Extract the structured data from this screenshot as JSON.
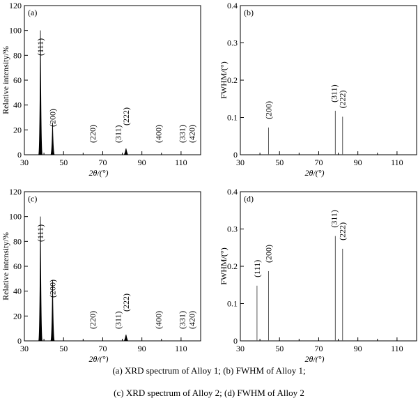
{
  "chart_data": [
    {
      "id": "a",
      "panel_label": "(a)",
      "type": "bar",
      "xlabel": "2θ/(°)",
      "ylabel": "Relative intensity/%",
      "xlim": [
        30,
        120
      ],
      "ylim": [
        0,
        120
      ],
      "xticks": [
        30,
        50,
        70,
        90,
        110
      ],
      "yticks": [
        0,
        20,
        40,
        60,
        80,
        100,
        120
      ],
      "peaks": [
        {
          "label": "(111)",
          "x": 38.2,
          "y": 100
        },
        {
          "label": "(200)",
          "x": 44.4,
          "y": 26
        },
        {
          "label": "(220)",
          "x": 64.8,
          "y": 0
        },
        {
          "label": "(311)",
          "x": 77.8,
          "y": 0
        },
        {
          "label": "(222)",
          "x": 81.9,
          "y": 5
        },
        {
          "label": "(400)",
          "x": 98.5,
          "y": 0
        },
        {
          "label": "(331)",
          "x": 110.5,
          "y": 0
        },
        {
          "label": "(420)",
          "x": 115.5,
          "y": 0
        }
      ]
    },
    {
      "id": "b",
      "panel_label": "(b)",
      "type": "bar",
      "xlabel": "2θ/(°)",
      "ylabel": "FWHM/(°)",
      "xlim": [
        30,
        120
      ],
      "ylim": [
        0,
        0.4
      ],
      "xticks": [
        30,
        50,
        70,
        90,
        110
      ],
      "yticks": [
        0,
        0.1,
        0.2,
        0.3,
        0.4
      ],
      "peaks": [
        {
          "label": "(200)",
          "x": 44.4,
          "y": 0.073
        },
        {
          "label": "(311)",
          "x": 78.5,
          "y": 0.118
        },
        {
          "label": "(222)",
          "x": 82.2,
          "y": 0.102
        }
      ]
    },
    {
      "id": "c",
      "panel_label": "(c)",
      "type": "bar",
      "xlabel": "2θ/(°)",
      "ylabel": "Relative intensity/%",
      "xlim": [
        30,
        120
      ],
      "ylim": [
        0,
        120
      ],
      "xticks": [
        30,
        50,
        70,
        90,
        110
      ],
      "yticks": [
        0,
        20,
        40,
        60,
        80,
        100,
        120
      ],
      "peaks": [
        {
          "label": "(111)",
          "x": 38.2,
          "y": 100
        },
        {
          "label": "(200)",
          "x": 44.4,
          "y": 49
        },
        {
          "label": "(220)",
          "x": 64.8,
          "y": 0
        },
        {
          "label": "(311)",
          "x": 77.8,
          "y": 0
        },
        {
          "label": "(222)",
          "x": 81.9,
          "y": 5
        },
        {
          "label": "(400)",
          "x": 98.5,
          "y": 0
        },
        {
          "label": "(331)",
          "x": 110.5,
          "y": 0
        },
        {
          "label": "(420)",
          "x": 115.5,
          "y": 0
        }
      ]
    },
    {
      "id": "d",
      "panel_label": "(d)",
      "type": "bar",
      "xlabel": "2θ/(°)",
      "ylabel": "FWHM/(°)",
      "xlim": [
        30,
        120
      ],
      "ylim": [
        0,
        0.4
      ],
      "xticks": [
        30,
        50,
        70,
        90,
        110
      ],
      "yticks": [
        0,
        0.1,
        0.2,
        0.3,
        0.4
      ],
      "peaks": [
        {
          "label": "(111)",
          "x": 38.5,
          "y": 0.148
        },
        {
          "label": "(200)",
          "x": 44.4,
          "y": 0.187
        },
        {
          "label": "(311)",
          "x": 78.5,
          "y": 0.281
        },
        {
          "label": "(222)",
          "x": 82.2,
          "y": 0.247
        }
      ]
    }
  ],
  "caption": {
    "line1": "(a) XRD spectrum of Alloy 1; (b) FWHM of Alloy 1;",
    "line2": "(c) XRD spectrum of Alloy 2; (d) FWHM of Alloy 2"
  }
}
